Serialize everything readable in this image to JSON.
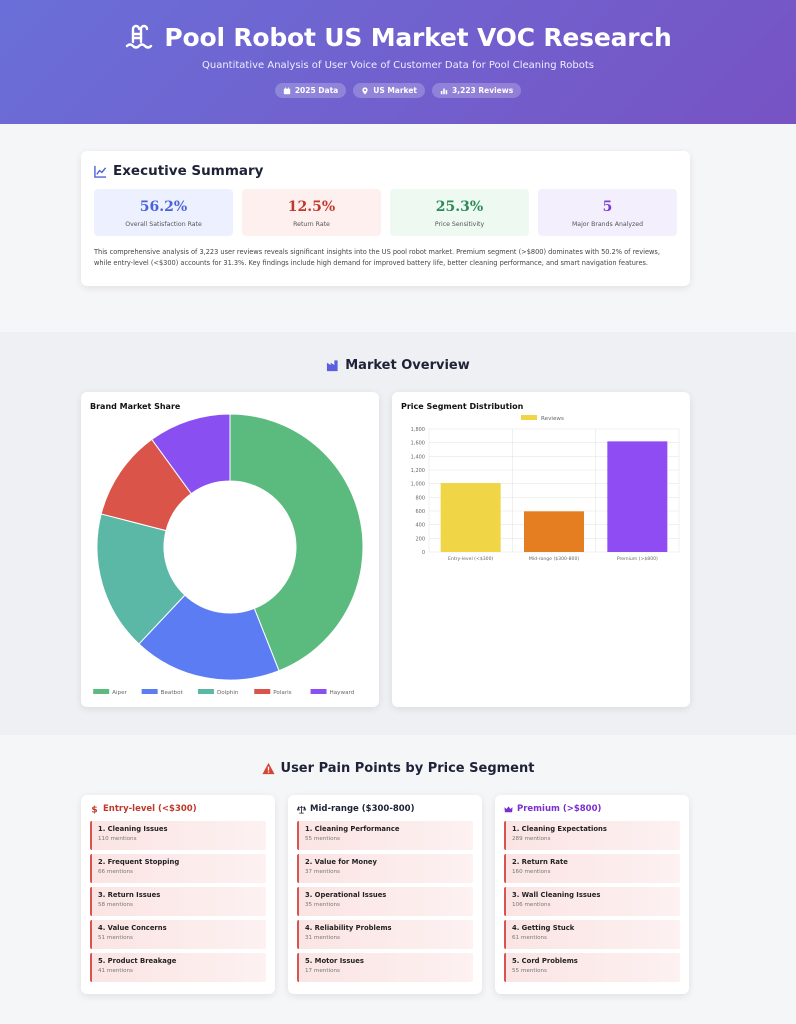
{
  "header": {
    "title": "Pool Robot US Market VOC Research",
    "subtitle": "Quantitative Analysis of User Voice of Customer Data for Pool Cleaning Robots",
    "badges": [
      {
        "icon": "calendar-icon",
        "label": "2025 Data"
      },
      {
        "icon": "map-pin-icon",
        "label": "US Market"
      },
      {
        "icon": "bar-chart-icon",
        "label": "3,223 Reviews"
      }
    ]
  },
  "summary": {
    "title": "Executive Summary",
    "stats": [
      {
        "value": "56.2%",
        "label": "Overall Satisfaction Rate",
        "color": "#4a63d6",
        "bg": "#edf1ff"
      },
      {
        "value": "12.5%",
        "label": "Return Rate",
        "color": "#c0392b",
        "bg": "#fdf0ee"
      },
      {
        "value": "25.3%",
        "label": "Price Sensitivity",
        "color": "#2e8b57",
        "bg": "#edf9f1"
      },
      {
        "value": "5",
        "label": "Major Brands Analyzed",
        "color": "#7b3fd0",
        "bg": "#f3effd"
      }
    ],
    "text": "This comprehensive analysis of 3,223 user reviews reveals significant insights into the US pool robot market. Premium segment (>$800) dominates with 50.2% of reviews, while entry-level (<$300) accounts for 31.3%. Key findings include high demand for improved battery life, better cleaning performance, and smart navigation features."
  },
  "market": {
    "title": "Market Overview",
    "share_title": "Brand Market Share",
    "segment_title": "Price Segment Distribution"
  },
  "chart_data": [
    {
      "type": "pie",
      "title": "Brand Market Share",
      "categories": [
        "Aiper",
        "Beatbot",
        "Dolphin",
        "Polaris",
        "Hayward"
      ],
      "values": [
        44,
        18,
        17,
        11,
        10
      ],
      "colors": [
        "#5bbb7e",
        "#5b7cf2",
        "#5cb8a6",
        "#db5449",
        "#8a4ff1"
      ]
    },
    {
      "type": "bar",
      "title": "Price Segment Distribution",
      "categories": [
        "Entry-level (<$300)",
        "Mid-range ($300-800)",
        "Premium (>$800)"
      ],
      "series": [
        {
          "name": "Reviews",
          "values": [
            1009,
            595,
            1619
          ]
        }
      ],
      "colors": [
        "#f0d547",
        "#e57e21",
        "#8f4cf2"
      ],
      "ylim": [
        0,
        1800
      ],
      "yticks": [
        "0",
        "200",
        "400",
        "600",
        "800",
        "1,000",
        "1,200",
        "1,400",
        "1,600",
        "1,800"
      ]
    }
  ],
  "pain": {
    "title": "User Pain Points by Price Segment",
    "segments": [
      {
        "icon": "dollar-icon",
        "title": "Entry-level (<$300)",
        "color": "#c0392b",
        "items": [
          {
            "title": "1. Cleaning Issues",
            "mentions": "110 mentions"
          },
          {
            "title": "2. Frequent Stopping",
            "mentions": "66 mentions"
          },
          {
            "title": "3. Return Issues",
            "mentions": "58 mentions"
          },
          {
            "title": "4. Value Concerns",
            "mentions": "51 mentions"
          },
          {
            "title": "5. Product Breakage",
            "mentions": "41 mentions"
          }
        ]
      },
      {
        "icon": "scale-icon",
        "title": "Mid-range ($300-800)",
        "color": "#1e2236",
        "items": [
          {
            "title": "1. Cleaning Performance",
            "mentions": "55 mentions"
          },
          {
            "title": "2. Value for Money",
            "mentions": "37 mentions"
          },
          {
            "title": "3. Operational Issues",
            "mentions": "35 mentions"
          },
          {
            "title": "4. Reliability Problems",
            "mentions": "31 mentions"
          },
          {
            "title": "5. Motor Issues",
            "mentions": "17 mentions"
          }
        ]
      },
      {
        "icon": "crown-icon",
        "title": "Premium (>$800)",
        "color": "#7b2fd0",
        "items": [
          {
            "title": "1. Cleaning Expectations",
            "mentions": "289 mentions"
          },
          {
            "title": "2. Return Rate",
            "mentions": "160 mentions"
          },
          {
            "title": "3. Wall Cleaning Issues",
            "mentions": "106 mentions"
          },
          {
            "title": "4. Getting Stuck",
            "mentions": "61 mentions"
          },
          {
            "title": "5. Cord Problems",
            "mentions": "55 mentions"
          }
        ]
      }
    ]
  }
}
